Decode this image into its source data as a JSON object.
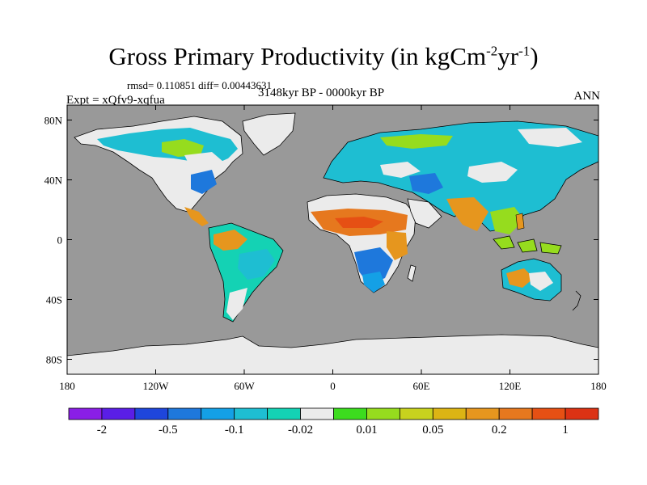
{
  "title": {
    "main": "Gross Primary Productivity (in kgCm",
    "sup1": "-2",
    "mid": "yr",
    "sup2": "-1",
    "end": ")"
  },
  "stats": "rmsd= 0.110851 diff= 0.00443631",
  "experiment": "Expt = xQfv9-xqfua",
  "period": "3148kyr BP - 0000kyr BP",
  "season": "ANN",
  "colors": {
    "ocean": "#999999",
    "land_neutral": "#ebebeb",
    "coast": "#000000"
  },
  "map": {
    "lon_range": [
      -180,
      180
    ],
    "lat_range": [
      -90,
      90
    ],
    "lon_ticks": [
      {
        "value": -180,
        "label": "180"
      },
      {
        "value": -120,
        "label": "120W"
      },
      {
        "value": -60,
        "label": "60W"
      },
      {
        "value": 0,
        "label": "0"
      },
      {
        "value": 60,
        "label": "60E"
      },
      {
        "value": 120,
        "label": "120E"
      },
      {
        "value": 180,
        "label": "180"
      }
    ],
    "lat_ticks": [
      {
        "value": 80,
        "label": "80N"
      },
      {
        "value": 40,
        "label": "40N"
      },
      {
        "value": 0,
        "label": "0"
      },
      {
        "value": -40,
        "label": "40S"
      },
      {
        "value": -80,
        "label": "80S"
      }
    ]
  },
  "colorbar": {
    "colors": [
      "#8a1ee6",
      "#5a1ee6",
      "#1e46dc",
      "#1e78dc",
      "#14a0e6",
      "#1ebed2",
      "#14d2b4",
      "#ebebeb",
      "#3cdc1e",
      "#96dc1e",
      "#c8d21e",
      "#dcb414",
      "#e6961e",
      "#e6781e",
      "#e65014",
      "#dc3214"
    ],
    "labels": [
      {
        "after": 1,
        "text": "-2"
      },
      {
        "after": 3,
        "text": "-0.5"
      },
      {
        "after": 5,
        "text": "-0.1"
      },
      {
        "after": 7,
        "text": "-0.02"
      },
      {
        "after": 9,
        "text": "0.01"
      },
      {
        "after": 11,
        "text": "0.05"
      },
      {
        "after": 13,
        "text": "0.2"
      },
      {
        "after": 15,
        "text": "1"
      }
    ]
  }
}
